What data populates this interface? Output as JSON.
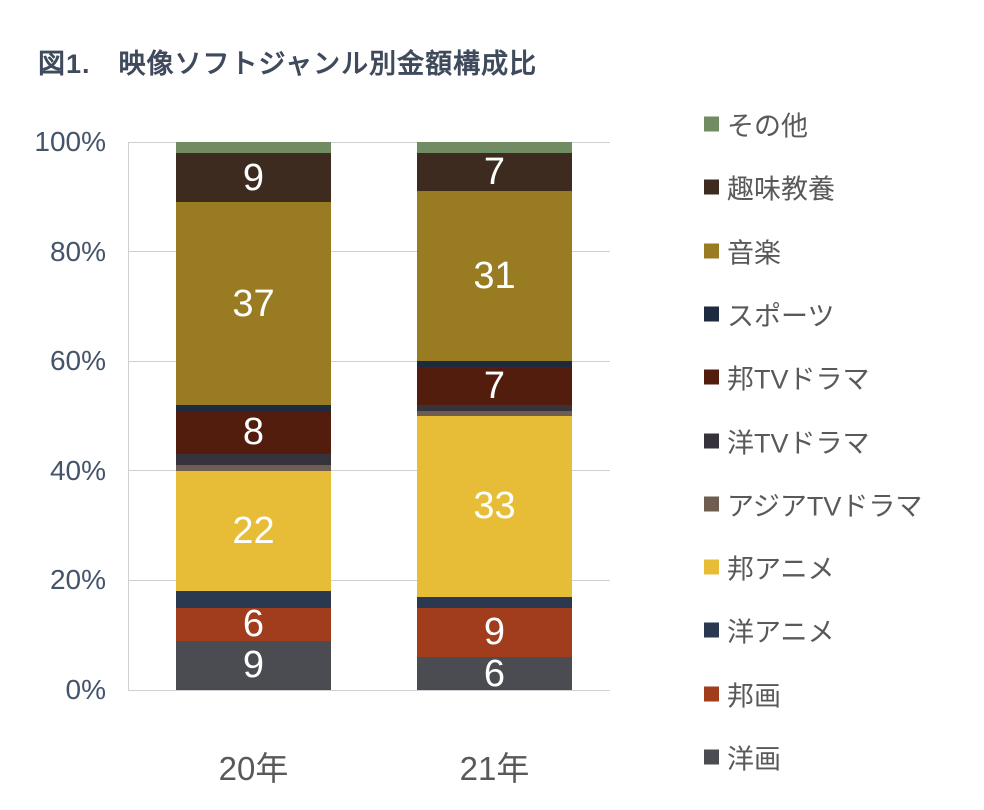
{
  "title": "図1.　映像ソフトジャンル別金額構成比",
  "chart_data": {
    "type": "bar",
    "stacked": true,
    "percent": true,
    "title": "図1.　映像ソフトジャンル別金額構成比",
    "categories": [
      "20年",
      "21年"
    ],
    "series": [
      {
        "name": "洋画",
        "color": "#4b4b52",
        "values": [
          9,
          6
        ]
      },
      {
        "name": "邦画",
        "color": "#a13c1d",
        "values": [
          6,
          9
        ]
      },
      {
        "name": "洋アニメ",
        "color": "#2a3850",
        "values": [
          3,
          2
        ]
      },
      {
        "name": "邦アニメ",
        "color": "#e7bd38",
        "values": [
          22,
          33
        ]
      },
      {
        "name": "アジアTVドラマ",
        "color": "#6f5d51",
        "values": [
          1,
          1
        ]
      },
      {
        "name": "洋TVドラマ",
        "color": "#36333c",
        "values": [
          2,
          1
        ]
      },
      {
        "name": "邦TVドラマ",
        "color": "#531d0e",
        "values": [
          8,
          7
        ]
      },
      {
        "name": "スポーツ",
        "color": "#1e2a3d",
        "values": [
          1,
          1
        ]
      },
      {
        "name": "音楽",
        "color": "#997b21",
        "values": [
          37,
          31
        ]
      },
      {
        "name": "趣味教養",
        "color": "#3c2b1e",
        "values": [
          9,
          7
        ]
      },
      {
        "name": "その他",
        "color": "#718c63",
        "values": [
          2,
          2
        ]
      }
    ],
    "y_ticks": [
      "0%",
      "20%",
      "40%",
      "60%",
      "80%",
      "100%"
    ],
    "ylim": [
      0,
      100
    ],
    "grid": true,
    "legend_position": "right",
    "data_label_min": 6,
    "data_label_color": "#ffffff"
  },
  "legend": {
    "items": [
      "その他",
      "趣味教養",
      "音楽",
      "スポーツ",
      "邦TVドラマ",
      "洋TVドラマ",
      "アジアTVドラマ",
      "邦アニメ",
      "洋アニメ",
      "邦画",
      "洋画"
    ]
  },
  "colors": {
    "title": "#3f4a5c",
    "axis_label": "#44546a",
    "category_label": "#595959",
    "legend_label": "#595959",
    "gridline": "#cfd0d2"
  }
}
